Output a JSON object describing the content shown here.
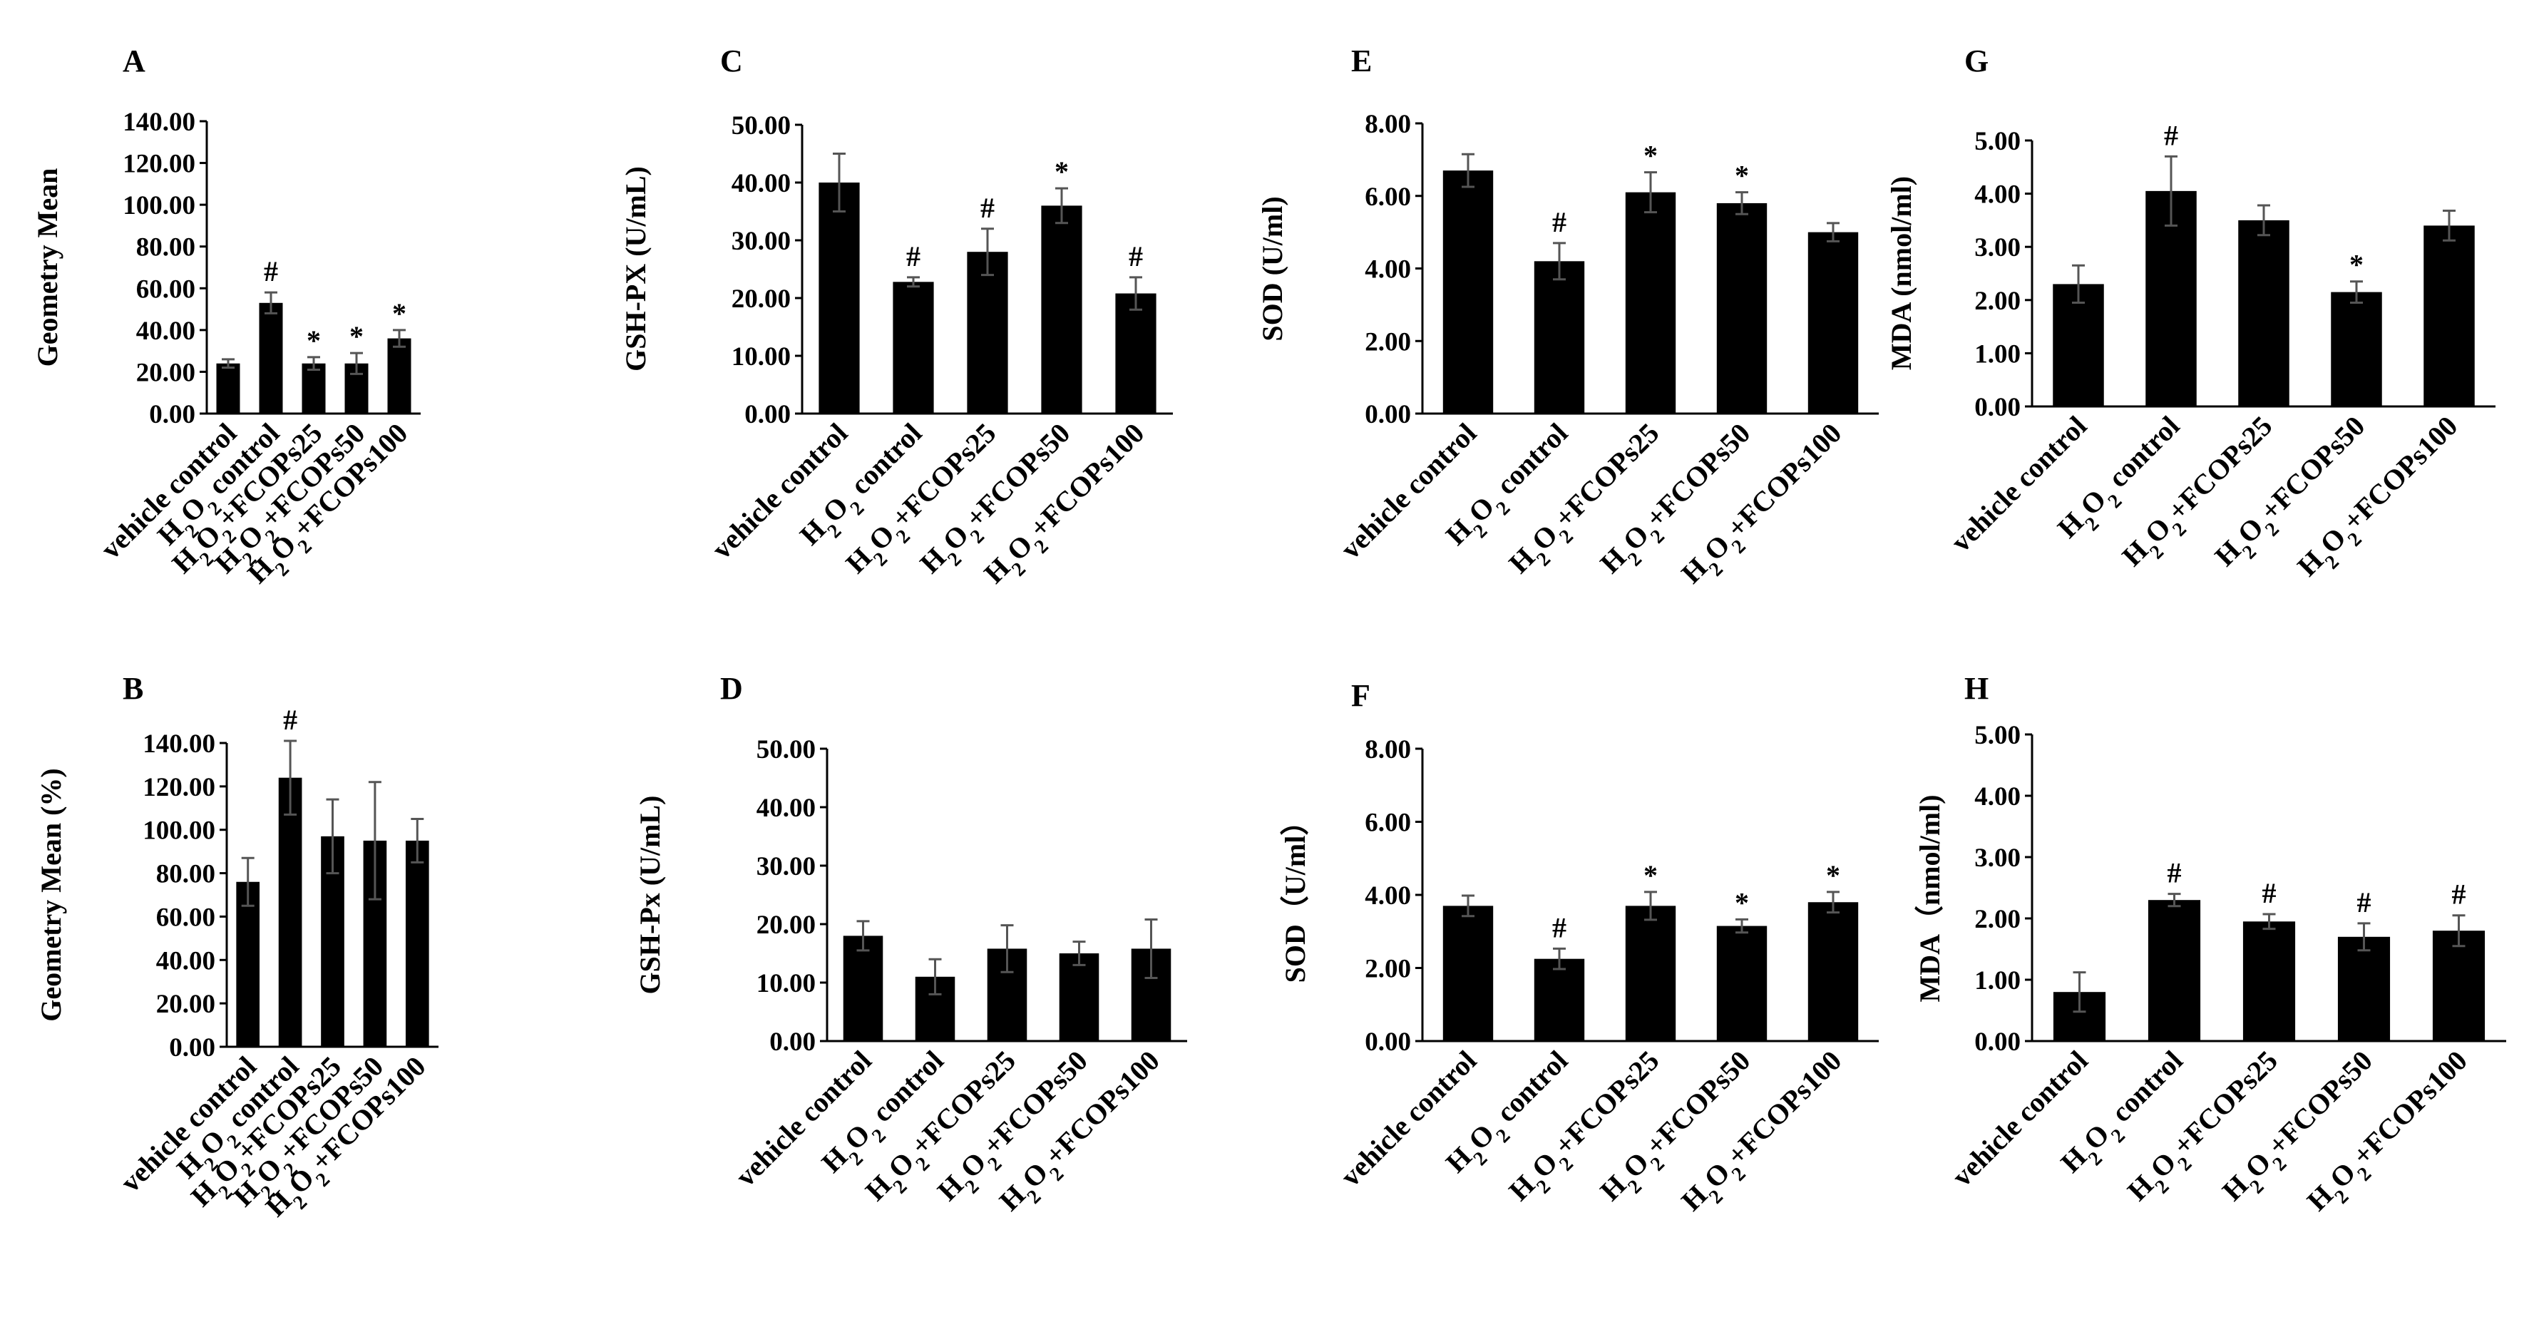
{
  "chart_data": [
    {
      "id": "A",
      "type": "bar",
      "panel_label": "A",
      "ylabel": "Geometry Mean",
      "categories": [
        "vehicle control",
        "H2O2 control",
        "H2O2+FCOPs25",
        "H2O2+FCOPs50",
        "H2O2+FCOPs100"
      ],
      "values": [
        24,
        53,
        24,
        24,
        36
      ],
      "errors": [
        2,
        5,
        3,
        5,
        4
      ],
      "marks": [
        "",
        "#",
        "*",
        "*",
        "*"
      ],
      "ylim": [
        0,
        140
      ],
      "yticks": [
        "0.00",
        "20.00",
        "40.00",
        "60.00",
        "80.00",
        "100.00",
        "120.00",
        "140.00"
      ]
    },
    {
      "id": "B",
      "type": "bar",
      "panel_label": "B",
      "ylabel": "Geometry Mean (%)",
      "categories": [
        "vehicle control",
        "H2O2 control",
        "H2O2+FCOPs25",
        "H2O2+FCOPs50",
        "H2O2+FCOPs100"
      ],
      "values": [
        76,
        124,
        97,
        95,
        95
      ],
      "errors": [
        11,
        17,
        17,
        27,
        10
      ],
      "marks": [
        "",
        "#",
        "",
        "",
        ""
      ],
      "ylim": [
        0,
        140
      ],
      "yticks": [
        "0.00",
        "20.00",
        "40.00",
        "60.00",
        "80.00",
        "100.00",
        "120.00",
        "140.00"
      ]
    },
    {
      "id": "C",
      "type": "bar",
      "panel_label": "C",
      "ylabel": "GSH-PX (U/mL)",
      "categories": [
        "vehicle control",
        "H2O2 control",
        "H2O2+FCOPs25",
        "H2O2+FCOPs50",
        "H2O2+FCOPs100"
      ],
      "values": [
        40,
        22.8,
        28,
        36,
        20.8
      ],
      "errors": [
        5,
        0.8,
        4,
        3,
        2.8
      ],
      "marks": [
        "",
        "#",
        "#",
        "*",
        "#"
      ],
      "ylim": [
        0,
        50
      ],
      "yticks": [
        "0.00",
        "10.00",
        "20.00",
        "30.00",
        "40.00",
        "50.00"
      ]
    },
    {
      "id": "D",
      "type": "bar",
      "panel_label": "D",
      "ylabel": "GSH-Px (U/mL)",
      "categories": [
        "vehicle control",
        "H2O2 control",
        "H2O2+FCOPs25",
        "H2O2+FCOPs50",
        "H2O2+FCOPs100"
      ],
      "values": [
        18,
        11,
        15.8,
        15,
        15.8
      ],
      "errors": [
        2.5,
        3,
        4,
        2,
        5
      ],
      "marks": [
        "",
        "",
        "",
        "",
        ""
      ],
      "ylim": [
        0,
        50
      ],
      "yticks": [
        "0.00",
        "10.00",
        "20.00",
        "30.00",
        "40.00",
        "50.00"
      ]
    },
    {
      "id": "E",
      "type": "bar",
      "panel_label": "E",
      "ylabel": "SOD (U/ml)",
      "categories": [
        "vehicle control",
        "H2O2 control",
        "H2O2+FCOPs25",
        "H2O2+FCOPs50",
        "H2O2+FCOPs100"
      ],
      "values": [
        6.7,
        4.2,
        6.1,
        5.8,
        5.0
      ],
      "errors": [
        0.45,
        0.5,
        0.55,
        0.3,
        0.25
      ],
      "marks": [
        "",
        "#",
        "*",
        "*",
        ""
      ],
      "ylim": [
        0,
        8
      ],
      "yticks": [
        "0.00",
        "2.00",
        "4.00",
        "6.00",
        "8.00"
      ]
    },
    {
      "id": "F",
      "type": "bar",
      "panel_label": "F",
      "ylabel": "SOD（U/ml）",
      "categories": [
        "vehicle control",
        "H2O2 control",
        "H2O2+FCOPs25",
        "H2O2+FCOPs50",
        "H2O2+FCOPs100"
      ],
      "values": [
        3.7,
        2.25,
        3.7,
        3.15,
        3.8
      ],
      "errors": [
        0.28,
        0.28,
        0.38,
        0.18,
        0.28
      ],
      "marks": [
        "",
        "#",
        "*",
        "*",
        "*"
      ],
      "ylim": [
        0,
        8
      ],
      "yticks": [
        "0.00",
        "2.00",
        "4.00",
        "6.00",
        "8.00"
      ]
    },
    {
      "id": "G",
      "type": "bar",
      "panel_label": "G",
      "ylabel": "MDA (nmol/ml)",
      "categories": [
        "vehicle control",
        "H2O2 control",
        "H2O2+FCOPs25",
        "H2O2+FCOPs50",
        "H2O2+FCOPs100"
      ],
      "values": [
        2.3,
        4.05,
        3.5,
        2.15,
        3.4
      ],
      "errors": [
        0.35,
        0.65,
        0.28,
        0.2,
        0.28
      ],
      "marks": [
        "",
        "#",
        "",
        "*",
        ""
      ],
      "ylim": [
        0,
        5
      ],
      "yticks": [
        "0.00",
        "1.00",
        "2.00",
        "3.00",
        "4.00",
        "5.00"
      ]
    },
    {
      "id": "H",
      "type": "bar",
      "panel_label": "H",
      "ylabel": "MDA（nmol/ml)",
      "categories": [
        "vehicle control",
        "H2O2 control",
        "H2O2+FCOPs25",
        "H2O2+FCOPs50",
        "H2O2+FCOPs100"
      ],
      "values": [
        0.8,
        2.3,
        1.95,
        1.7,
        1.8
      ],
      "errors": [
        0.32,
        0.1,
        0.12,
        0.22,
        0.25
      ],
      "marks": [
        "",
        "#",
        "#",
        "#",
        "#"
      ],
      "ylim": [
        0,
        5
      ],
      "yticks": [
        "0.00",
        "1.00",
        "2.00",
        "3.00",
        "4.00",
        "5.00"
      ]
    }
  ]
}
